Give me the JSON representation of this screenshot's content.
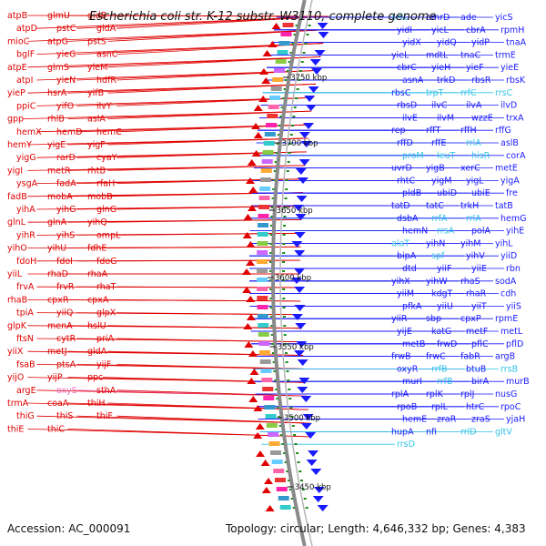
{
  "title": "Escherichia coli str. K-12 substr. W3110, complete genome",
  "accession": "Accession: AC_000091",
  "topology": "Topology: circular; Length: 4,646,332 bp; Genes: 4,383",
  "colors": {
    "left_strand": "#e00000",
    "right_strand": "#1a1aff",
    "rna": "#33c3e8",
    "pseudo": "#f06ac0",
    "tick": "#1a8c1a",
    "axis": "#8a8a8a"
  },
  "scale_ticks": [
    "3750 kbp",
    "3700 kbp",
    "3650 kbp",
    "3600 kbp",
    "3550 kbp",
    "3500 kbp",
    "3450 kbp"
  ],
  "left_genes": [
    "atpB",
    "glmU",
    "gidB",
    "atpD",
    "pstC",
    "gidA",
    "mioC",
    "atpG",
    "pstS",
    "bglF",
    "yieG",
    "asnC",
    "atpE",
    "glmS",
    "yieM",
    "atpI",
    "yieN",
    "hdfR",
    "yieP",
    "hsrA",
    "yifB",
    "ppiC",
    "yifO",
    "ilvY",
    "gpp",
    "rhlB",
    "aslA",
    "hemX",
    "hemD",
    "hemC",
    "hemY",
    "yigE",
    "yigF",
    "yigG",
    "rarD",
    "cyaY",
    "yigI",
    "metR",
    "rhtB",
    "ysgA",
    "fadA",
    "rfaH",
    "fadB",
    "mobA",
    "mobB",
    "yihA",
    "yihG",
    "glnG",
    "glnL",
    "glnA",
    "yihQ",
    "yihR",
    "yihS",
    "ompL",
    "yihO",
    "yihU",
    "fdhE",
    "fdoH",
    "fdoI",
    "fdoG",
    "yiiL",
    "rhaD",
    "rhaA",
    "frvA",
    "frvR",
    "rhaT",
    "rhaB",
    "cpxR",
    "cpxA",
    "tpiA",
    "yiiQ",
    "glpX",
    "glpK",
    "menA",
    "hslU",
    "ftsN",
    "cytR",
    "priA",
    "yiiX",
    "metJ",
    "gldA",
    "fsaB",
    "ptsA",
    "yijF",
    "yijO",
    "yijP",
    "ppc",
    "argE",
    "oxyS",
    "sthA",
    "trmA",
    "coaA",
    "thiH",
    "thiG",
    "thiS",
    "thiF",
    "thiE",
    "thiC"
  ],
  "right_genes": [
    "selC",
    "emrD",
    "ade",
    "yicS",
    "yidI",
    "yicL",
    "cbrA",
    "rpmH",
    "yidX",
    "yidQ",
    "yidP",
    "tnaA",
    "yieL",
    "mdtL",
    "tnaC",
    "trmE",
    "cbrC",
    "yieH",
    "yieF",
    "yieE",
    "asnA",
    "trkD",
    "rbsR",
    "rbsK",
    "rbsC",
    "trpT",
    "rrfC",
    "rrsC",
    "rbsD",
    "ilvC",
    "ilvA",
    "ilvD",
    "ilvE",
    "ilvM",
    "wzzE",
    "trxA",
    "rep",
    "rffT",
    "rffH",
    "rffG",
    "rffD",
    "rffE",
    "rrlA",
    "aslB",
    "proM",
    "leuT",
    "hisR",
    "corA",
    "uvrD",
    "yigB",
    "xerC",
    "metE",
    "rhtC",
    "yigM",
    "yigL",
    "yigA",
    "pldB",
    "ubiD",
    "ubiE",
    "fre",
    "tatD",
    "tatC",
    "trkH",
    "tatB",
    "dsbA",
    "rrfA",
    "rrlA",
    "hemG",
    "hemN",
    "rrsA",
    "polA",
    "yihE",
    "alaT",
    "yihN",
    "yihM",
    "yihL",
    "bipA",
    "spf",
    "yihV",
    "yiiD",
    "dtd",
    "yiiF",
    "yiiE",
    "rbn",
    "yihX",
    "yihW",
    "rhaS",
    "sodA",
    "yiiM",
    "kdgT",
    "rhaR",
    "cdh",
    "pfkA",
    "yiiU",
    "yiiT",
    "yiiS",
    "yiiR",
    "sbp",
    "cpxP",
    "rpmE",
    "yijE",
    "katG",
    "metF",
    "metL",
    "metB",
    "frwD",
    "pflC",
    "pflD",
    "frwB",
    "frwC",
    "fabR",
    "argB",
    "oxyR",
    "rrfB",
    "btuB",
    "rrsB",
    "murI",
    "rrfB",
    "birA",
    "murB",
    "rplA",
    "rplK",
    "rplJ",
    "nusG",
    "rpoB",
    "rplL",
    "htrC",
    "rpoC",
    "hemE",
    "zraR",
    "zraS",
    "yjaH",
    "hupA",
    "nfi",
    "rrlD",
    "gltV",
    "rrsD"
  ]
}
